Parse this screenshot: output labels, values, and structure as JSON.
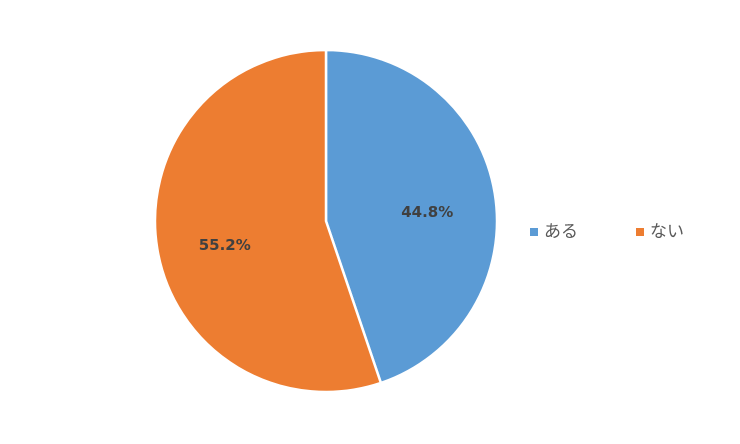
{
  "chart_data": {
    "type": "pie",
    "categories": [
      "ある",
      "ない"
    ],
    "values": [
      44.8,
      55.2
    ],
    "value_labels": [
      "44.8%",
      "55.2%"
    ],
    "colors": [
      "#5b9bd5",
      "#ed7d31"
    ],
    "legend": "right"
  }
}
